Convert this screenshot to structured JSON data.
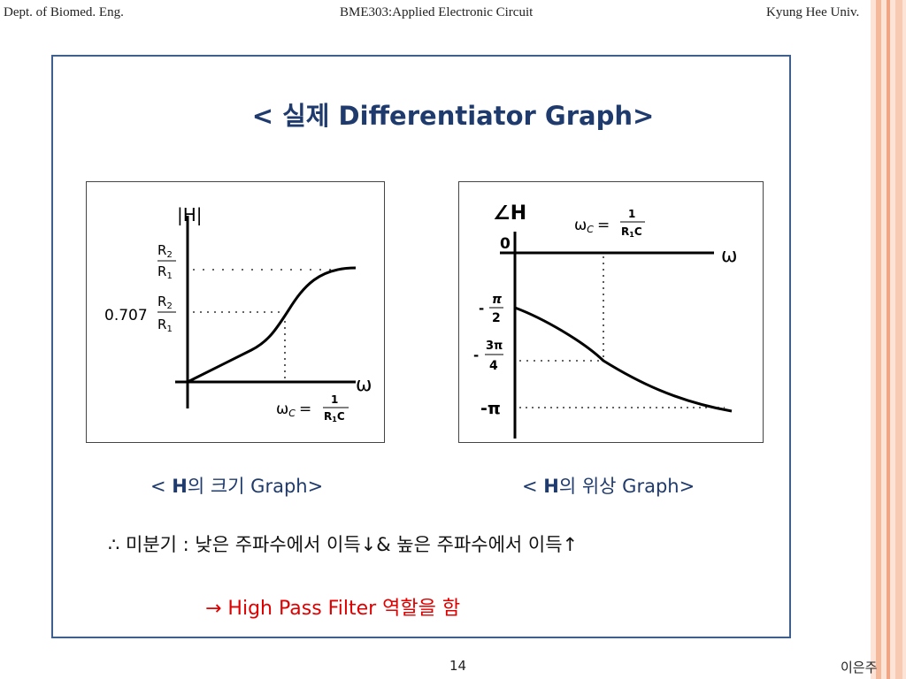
{
  "header": {
    "left": "Dept. of Biomed. Eng.",
    "center": "BME303:Applied Electronic Circuit",
    "right": "Kyung Hee Univ."
  },
  "slide": {
    "title": "< 실제 Differentiator Graph>",
    "mag_caption": {
      "pre": "< ",
      "bold": "H",
      "post": "의 크기 Graph>"
    },
    "phase_caption": {
      "pre": "< ",
      "bold": "H",
      "post": "의 위상 Graph>"
    },
    "conclusion": "∴ 미분기 : 낮은 주파수에서 이득↓& 높은 주파수에서 이득↑",
    "hpf": "→ High Pass Filter 역할을 함"
  },
  "mag_graph": {
    "ylabel": "|H|",
    "xlabel": "ω",
    "r2": "R",
    "r1": "R",
    "sub2": "2",
    "sub1": "1",
    "k": "0.707",
    "wc_lhs": "ω",
    "wc_sub": "C",
    "wc_eq": "=",
    "wc_num": "1",
    "wc_den": "R",
    "wc_den_sub": "1",
    "wc_den_tail": "C"
  },
  "phase_graph": {
    "ylabel": "∠H",
    "xlabel": "ω",
    "zero": "0",
    "pi_minus": "-",
    "pi_num": "π",
    "pi_den": "2",
    "p3_minus": "-",
    "p3_num": "3π",
    "p3_den": "4",
    "pi_full": "-π",
    "wc_lhs": "ω",
    "wc_sub": "C",
    "wc_eq": "=",
    "wc_num": "1",
    "wc_den": "R",
    "wc_den_sub": "1",
    "wc_den_tail": "C"
  },
  "footer": {
    "page": "14",
    "author": "이은주"
  },
  "colors": {
    "title": "#1f3b6e",
    "frame": "#3f5f8f",
    "accent_red": "#e00000",
    "stripe": "#f4b99a"
  }
}
